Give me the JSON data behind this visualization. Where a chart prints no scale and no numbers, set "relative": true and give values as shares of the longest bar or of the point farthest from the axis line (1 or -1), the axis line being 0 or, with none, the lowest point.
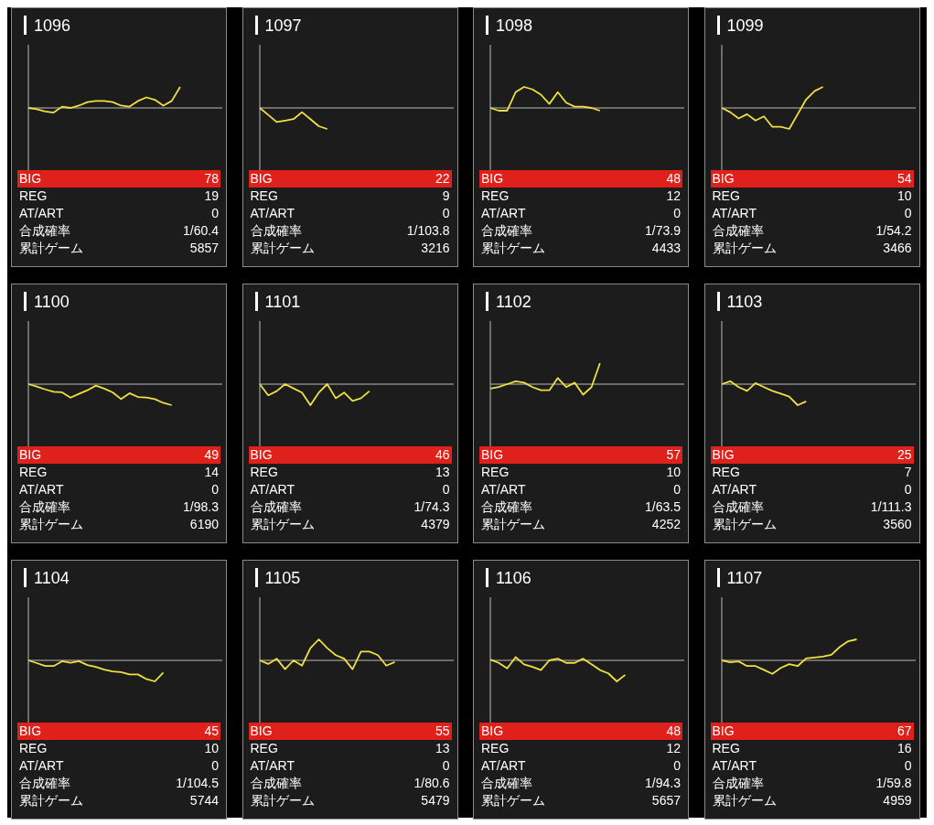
{
  "chart_data": [
    {
      "type": "line",
      "title": "1096",
      "relative": true,
      "marker": "none",
      "categories": [
        null,
        null,
        null,
        null,
        null,
        null,
        null,
        null,
        null,
        null,
        null,
        null,
        null,
        null,
        null,
        null,
        null,
        null,
        null,
        null,
        null,
        null,
        null,
        null
      ],
      "series": [
        {
          "color": "#f0e040",
          "values": [
            0,
            -0.06,
            -0.17,
            -0.22,
            0.06,
            0,
            0.11,
            0.28,
            0.33,
            0.33,
            0.28,
            0.11,
            0.06,
            0.33,
            0.5,
            0.39,
            0.11,
            0.33,
            1,
            null,
            null,
            null,
            null,
            null
          ]
        }
      ],
      "annotations": [
        "BIG",
        "78",
        "REG",
        "19",
        "AT/ART",
        "0",
        "合成確率",
        "1/60.4",
        "累計ゲーム",
        "5857"
      ]
    },
    {
      "type": "line",
      "title": "1097",
      "relative": true,
      "marker": "none",
      "categories": [
        null,
        null,
        null,
        null,
        null,
        null,
        null,
        null,
        null,
        null,
        null,
        null,
        null,
        null,
        null,
        null,
        null,
        null,
        null,
        null,
        null,
        null,
        null,
        null
      ],
      "series": [
        {
          "color": "#f0e040",
          "values": [
            0,
            -0.33,
            -0.67,
            -0.6,
            -0.53,
            -0.2,
            -0.53,
            -0.87,
            -1,
            null,
            null,
            null,
            null,
            null,
            null,
            null,
            null,
            null,
            null,
            null,
            null,
            null,
            null,
            null
          ]
        }
      ],
      "annotations": [
        "BIG",
        "22",
        "REG",
        "9",
        "AT/ART",
        "0",
        "合成確率",
        "1/103.8",
        "累計ゲーム",
        "3216"
      ]
    },
    {
      "type": "line",
      "title": "1098",
      "relative": true,
      "marker": "none",
      "categories": [
        null,
        null,
        null,
        null,
        null,
        null,
        null,
        null,
        null,
        null,
        null,
        null,
        null,
        null,
        null,
        null,
        null,
        null,
        null,
        null,
        null,
        null,
        null,
        null
      ],
      "series": [
        {
          "color": "#f0e040",
          "values": [
            0,
            -0.13,
            -0.13,
            0.75,
            1,
            0.88,
            0.63,
            0.19,
            0.75,
            0.25,
            0.06,
            0.06,
            0,
            -0.13,
            null,
            null,
            null,
            null,
            null,
            null,
            null,
            null,
            null,
            null
          ]
        }
      ],
      "annotations": [
        "BIG",
        "48",
        "REG",
        "12",
        "AT/ART",
        "0",
        "合成確率",
        "1/73.9",
        "累計ゲーム",
        "4433"
      ]
    },
    {
      "type": "line",
      "title": "1099",
      "relative": true,
      "marker": "none",
      "categories": [
        null,
        null,
        null,
        null,
        null,
        null,
        null,
        null,
        null,
        null,
        null,
        null,
        null,
        null,
        null,
        null,
        null,
        null,
        null,
        null,
        null,
        null,
        null,
        null
      ],
      "series": [
        {
          "color": "#f0e040",
          "values": [
            0,
            -0.2,
            -0.5,
            -0.3,
            -0.6,
            -0.4,
            -0.9,
            -0.9,
            -1,
            -0.3,
            0.4,
            0.8,
            1,
            null,
            null,
            null,
            null,
            null,
            null,
            null,
            null,
            null,
            null,
            null
          ]
        }
      ],
      "annotations": [
        "BIG",
        "54",
        "REG",
        "10",
        "AT/ART",
        "0",
        "合成確率",
        "1/54.2",
        "累計ゲーム",
        "3466"
      ]
    },
    {
      "type": "line",
      "title": "1100",
      "relative": true,
      "marker": "none",
      "categories": [
        null,
        null,
        null,
        null,
        null,
        null,
        null,
        null,
        null,
        null,
        null,
        null,
        null,
        null,
        null,
        null,
        null,
        null,
        null,
        null,
        null,
        null,
        null,
        null
      ],
      "series": [
        {
          "color": "#f0e040",
          "values": [
            0,
            -0.11,
            -0.25,
            -0.36,
            -0.39,
            -0.64,
            -0.46,
            -0.29,
            -0.07,
            -0.21,
            -0.39,
            -0.71,
            -0.43,
            -0.61,
            -0.64,
            -0.71,
            -0.89,
            -1,
            null,
            null,
            null,
            null,
            null,
            null
          ]
        }
      ],
      "annotations": [
        "BIG",
        "49",
        "REG",
        "14",
        "AT/ART",
        "0",
        "合成確率",
        "1/98.3",
        "累計ゲーム",
        "6190"
      ]
    },
    {
      "type": "line",
      "title": "1101",
      "relative": true,
      "marker": "none",
      "categories": [
        null,
        null,
        null,
        null,
        null,
        null,
        null,
        null,
        null,
        null,
        null,
        null,
        null,
        null,
        null,
        null,
        null,
        null,
        null,
        null,
        null,
        null,
        null,
        null
      ],
      "series": [
        {
          "color": "#f0e040",
          "values": [
            0,
            -0.53,
            -0.33,
            0,
            -0.2,
            -0.4,
            -1,
            -0.4,
            0,
            -0.67,
            -0.4,
            -0.8,
            -0.67,
            -0.33,
            null,
            null,
            null,
            null,
            null,
            null,
            null,
            null,
            null,
            null
          ]
        }
      ],
      "annotations": [
        "BIG",
        "46",
        "REG",
        "13",
        "AT/ART",
        "0",
        "合成確率",
        "1/74.3",
        "累計ゲーム",
        "4379"
      ]
    },
    {
      "type": "line",
      "title": "1102",
      "relative": true,
      "marker": "none",
      "categories": [
        null,
        null,
        null,
        null,
        null,
        null,
        null,
        null,
        null,
        null,
        null,
        null,
        null,
        null,
        null,
        null,
        null,
        null,
        null,
        null,
        null,
        null,
        null,
        null
      ],
      "series": [
        {
          "color": "#f0e040",
          "values": [
            -0.21,
            -0.14,
            0,
            0.14,
            0.07,
            -0.14,
            -0.29,
            -0.29,
            0.29,
            -0.14,
            0.07,
            -0.5,
            -0.14,
            1,
            null,
            null,
            null,
            null,
            null,
            null,
            null,
            null,
            null,
            null
          ]
        }
      ],
      "annotations": [
        "BIG",
        "57",
        "REG",
        "10",
        "AT/ART",
        "0",
        "合成確率",
        "1/63.5",
        "累計ゲーム",
        "4252"
      ]
    },
    {
      "type": "line",
      "title": "1103",
      "relative": true,
      "marker": "none",
      "categories": [
        null,
        null,
        null,
        null,
        null,
        null,
        null,
        null,
        null,
        null,
        null,
        null,
        null,
        null,
        null,
        null,
        null,
        null,
        null,
        null,
        null,
        null,
        null,
        null
      ],
      "series": [
        {
          "color": "#f0e040",
          "values": [
            0,
            0.14,
            -0.14,
            -0.32,
            0.05,
            -0.14,
            -0.32,
            -0.45,
            -0.59,
            -1,
            -0.82,
            null,
            null,
            null,
            null,
            null,
            null,
            null,
            null,
            null,
            null,
            null,
            null,
            null
          ]
        }
      ],
      "annotations": [
        "BIG",
        "25",
        "REG",
        "7",
        "AT/ART",
        "0",
        "合成確率",
        "1/111.3",
        "累計ゲーム",
        "3560"
      ]
    },
    {
      "type": "line",
      "title": "1104",
      "relative": true,
      "marker": "none",
      "categories": [
        null,
        null,
        null,
        null,
        null,
        null,
        null,
        null,
        null,
        null,
        null,
        null,
        null,
        null,
        null,
        null,
        null,
        null,
        null,
        null,
        null,
        null,
        null,
        null
      ],
      "series": [
        {
          "color": "#f0e040",
          "values": [
            0,
            -0.13,
            -0.27,
            -0.27,
            -0.04,
            -0.11,
            -0.04,
            -0.22,
            -0.31,
            -0.44,
            -0.53,
            -0.56,
            -0.67,
            -0.67,
            -0.89,
            -1,
            -0.58,
            null,
            null,
            null,
            null,
            null,
            null,
            null
          ]
        }
      ],
      "annotations": [
        "BIG",
        "45",
        "REG",
        "10",
        "AT/ART",
        "0",
        "合成確率",
        "1/104.5",
        "累計ゲーム",
        "5744"
      ]
    },
    {
      "type": "line",
      "title": "1105",
      "relative": true,
      "marker": "none",
      "categories": [
        null,
        null,
        null,
        null,
        null,
        null,
        null,
        null,
        null,
        null,
        null,
        null,
        null,
        null,
        null,
        null,
        null,
        null,
        null,
        null,
        null,
        null,
        null,
        null
      ],
      "series": [
        {
          "color": "#f0e040",
          "values": [
            0,
            -0.17,
            0.08,
            -0.42,
            0,
            -0.25,
            0.58,
            1,
            0.58,
            0.25,
            0.08,
            -0.42,
            0.42,
            0.42,
            0.25,
            -0.25,
            -0.08,
            null,
            null,
            null,
            null,
            null,
            null,
            null
          ]
        }
      ],
      "annotations": [
        "BIG",
        "55",
        "REG",
        "13",
        "AT/ART",
        "0",
        "合成確率",
        "1/80.6",
        "累計ゲーム",
        "5479"
      ]
    },
    {
      "type": "line",
      "title": "1106",
      "relative": true,
      "marker": "none",
      "categories": [
        null,
        null,
        null,
        null,
        null,
        null,
        null,
        null,
        null,
        null,
        null,
        null,
        null,
        null,
        null,
        null,
        null,
        null,
        null,
        null,
        null,
        null,
        null,
        null
      ],
      "series": [
        {
          "color": "#f0e040",
          "values": [
            0.04,
            -0.12,
            -0.38,
            0.15,
            -0.19,
            -0.31,
            -0.46,
            0,
            0.08,
            -0.12,
            -0.12,
            0.08,
            -0.19,
            -0.46,
            -0.62,
            -1,
            -0.69,
            null,
            null,
            null,
            null,
            null,
            null,
            null
          ]
        }
      ],
      "annotations": [
        "BIG",
        "48",
        "REG",
        "12",
        "AT/ART",
        "0",
        "合成確率",
        "1/94.3",
        "累計ゲーム",
        "5657"
      ]
    },
    {
      "type": "line",
      "title": "1107",
      "relative": true,
      "marker": "none",
      "categories": [
        null,
        null,
        null,
        null,
        null,
        null,
        null,
        null,
        null,
        null,
        null,
        null,
        null,
        null,
        null,
        null,
        null,
        null,
        null,
        null,
        null,
        null,
        null,
        null
      ],
      "series": [
        {
          "color": "#f0e040",
          "values": [
            0,
            -0.09,
            -0.05,
            -0.27,
            -0.27,
            -0.45,
            -0.64,
            -0.36,
            -0.18,
            -0.27,
            0.09,
            0.14,
            0.18,
            0.27,
            0.64,
            0.91,
            1,
            null,
            null,
            null,
            null,
            null,
            null,
            null
          ]
        }
      ],
      "annotations": [
        "BIG",
        "67",
        "REG",
        "16",
        "AT/ART",
        "0",
        "合成確率",
        "1/59.8",
        "累計ゲーム",
        "4959"
      ]
    }
  ]
}
